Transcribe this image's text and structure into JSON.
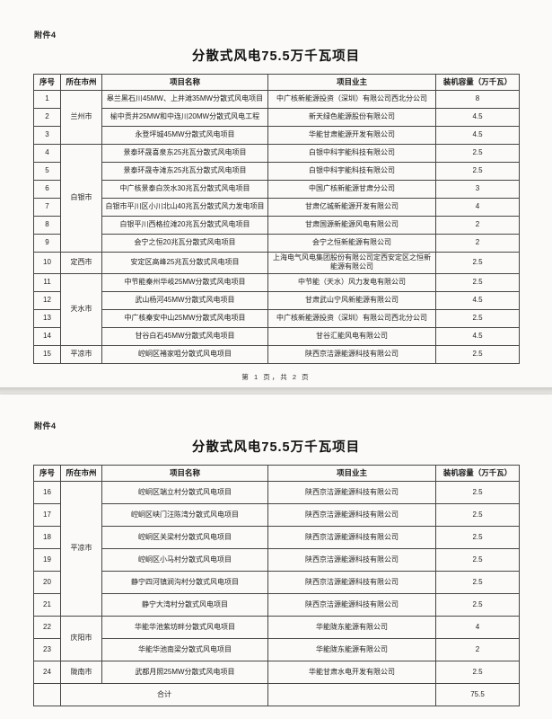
{
  "document": {
    "kind": "scanned-official-table",
    "total_capacity": "75.5"
  },
  "pages": [
    {
      "attachment_label": "附件4",
      "title": "分散式风电75.5万千瓦项目",
      "columns": [
        "序号",
        "所在市州",
        "项目名称",
        "项目业主",
        "装机容量（万千瓦）"
      ],
      "rows": [
        {
          "no": "1",
          "city": "兰州市",
          "city_span": 3,
          "project": "皋兰黑石川45MW、上井滩35MW分散式风电项目",
          "owner": "中广核新能源投资（深圳）有限公司西北分公司",
          "capacity": "8"
        },
        {
          "no": "2",
          "project": "榆中贡井25MW和中连川20MW分散式风电工程",
          "owner": "新天绿色能源股份有限公司",
          "capacity": "4.5"
        },
        {
          "no": "3",
          "project": "永登坪城45MW分散式风电项目",
          "owner": "华能甘肃能源开发有限公司",
          "capacity": "4.5"
        },
        {
          "no": "4",
          "city": "白银市",
          "city_span": 6,
          "project": "景泰环晟喜泉东25兆瓦分散式风电项目",
          "owner": "白银中科宇能科技有限公司",
          "capacity": "2.5"
        },
        {
          "no": "5",
          "project": "景泰环晟寺滩东25兆瓦分散式风电项目",
          "owner": "白银中科宇能科技有限公司",
          "capacity": "2.5"
        },
        {
          "no": "6",
          "project": "中广核景泰白茨水30兆瓦分散式风电项目",
          "owner": "中国广核新能源甘肃分公司",
          "capacity": "3"
        },
        {
          "no": "7",
          "project": "白银市平川区小川北山40兆瓦分散式风力发电项目",
          "owner": "甘肃亿城新能源开发有限公司",
          "capacity": "4"
        },
        {
          "no": "8",
          "project": "白银平川西格拉滩20兆瓦分散式风电项目",
          "owner": "甘肃国源新能源风电有限公司",
          "capacity": "2"
        },
        {
          "no": "9",
          "project": "会宁之恒20兆瓦分散式风电项目",
          "owner": "会宁之恒新能源有限公司",
          "capacity": "2"
        },
        {
          "no": "10",
          "city": "定西市",
          "city_span": 1,
          "project": "安定区高峰25兆瓦分散式风电项目",
          "owner": "上海电气风电集团股份有限公司定西安定区之恒新能源有限公司",
          "capacity": "2.5"
        },
        {
          "no": "11",
          "city": "天水市",
          "city_span": 4,
          "project": "中节能秦州华岐25MW分散式风电项目",
          "owner": "中节能（天水）风力发电有限公司",
          "capacity": "2.5"
        },
        {
          "no": "12",
          "project": "武山杨河45MW分散式风电项目",
          "owner": "甘肃武山宁风新能源有限公司",
          "capacity": "4.5"
        },
        {
          "no": "13",
          "project": "中广核秦安中山25MW分散式风电项目",
          "owner": "中广核新能源投资（深圳）有限公司西北分公司",
          "capacity": "2.5"
        },
        {
          "no": "14",
          "project": "甘谷白石45MW分散式风电项目",
          "owner": "甘谷汇能风电有限公司",
          "capacity": "4.5"
        },
        {
          "no": "15",
          "city": "平凉市",
          "city_span": 1,
          "project": "崆峒区褚家咀分散式风电项目",
          "owner": "陕西京洁源能源科技有限公司",
          "capacity": "2.5"
        }
      ],
      "footer": "第 1 页，共 2 页"
    },
    {
      "attachment_label": "附件4",
      "title": "分散式风电75.5万千瓦项目",
      "columns": [
        "序号",
        "所在市州",
        "项目名称",
        "项目业主",
        "装机容量（万千瓦）"
      ],
      "rows": [
        {
          "no": "16",
          "city": "平凉市",
          "city_span": 6,
          "project": "崆峒区端立村分散式风电项目",
          "owner": "陕西京洁源能源科技有限公司",
          "capacity": "2.5"
        },
        {
          "no": "17",
          "project": "崆峒区峡门汪陈湾分散式风电项目",
          "owner": "陕西京洁源能源科技有限公司",
          "capacity": "2.5"
        },
        {
          "no": "18",
          "project": "崆峒区关梁村分散式风电项目",
          "owner": "陕西京洁源能源科技有限公司",
          "capacity": "2.5"
        },
        {
          "no": "19",
          "project": "崆峒区小马村分散式风电项目",
          "owner": "陕西京洁源能源科技有限公司",
          "capacity": "2.5"
        },
        {
          "no": "20",
          "project": "静宁四河镇涧沟村分散式风电项目",
          "owner": "陕西京洁源能源科技有限公司",
          "capacity": "2.5"
        },
        {
          "no": "21",
          "project": "静宁大湾村分散式风电项目",
          "owner": "陕西京洁源能源科技有限公司",
          "capacity": "2.5"
        },
        {
          "no": "22",
          "city": "庆阳市",
          "city_span": 2,
          "project": "华能华池紫坊畔分散式风电项目",
          "owner": "华能陇东能源有限公司",
          "capacity": "4"
        },
        {
          "no": "23",
          "project": "华能华池南梁分散式风电项目",
          "owner": "华能陇东能源有限公司",
          "capacity": "2"
        },
        {
          "no": "24",
          "city": "陇南市",
          "city_span": 1,
          "project": "武都月照25MW分散式风电项目",
          "owner": "华能甘肃水电开发有限公司",
          "capacity": "2.5"
        }
      ],
      "total": {
        "label": "合计",
        "capacity": "75.5"
      }
    }
  ]
}
